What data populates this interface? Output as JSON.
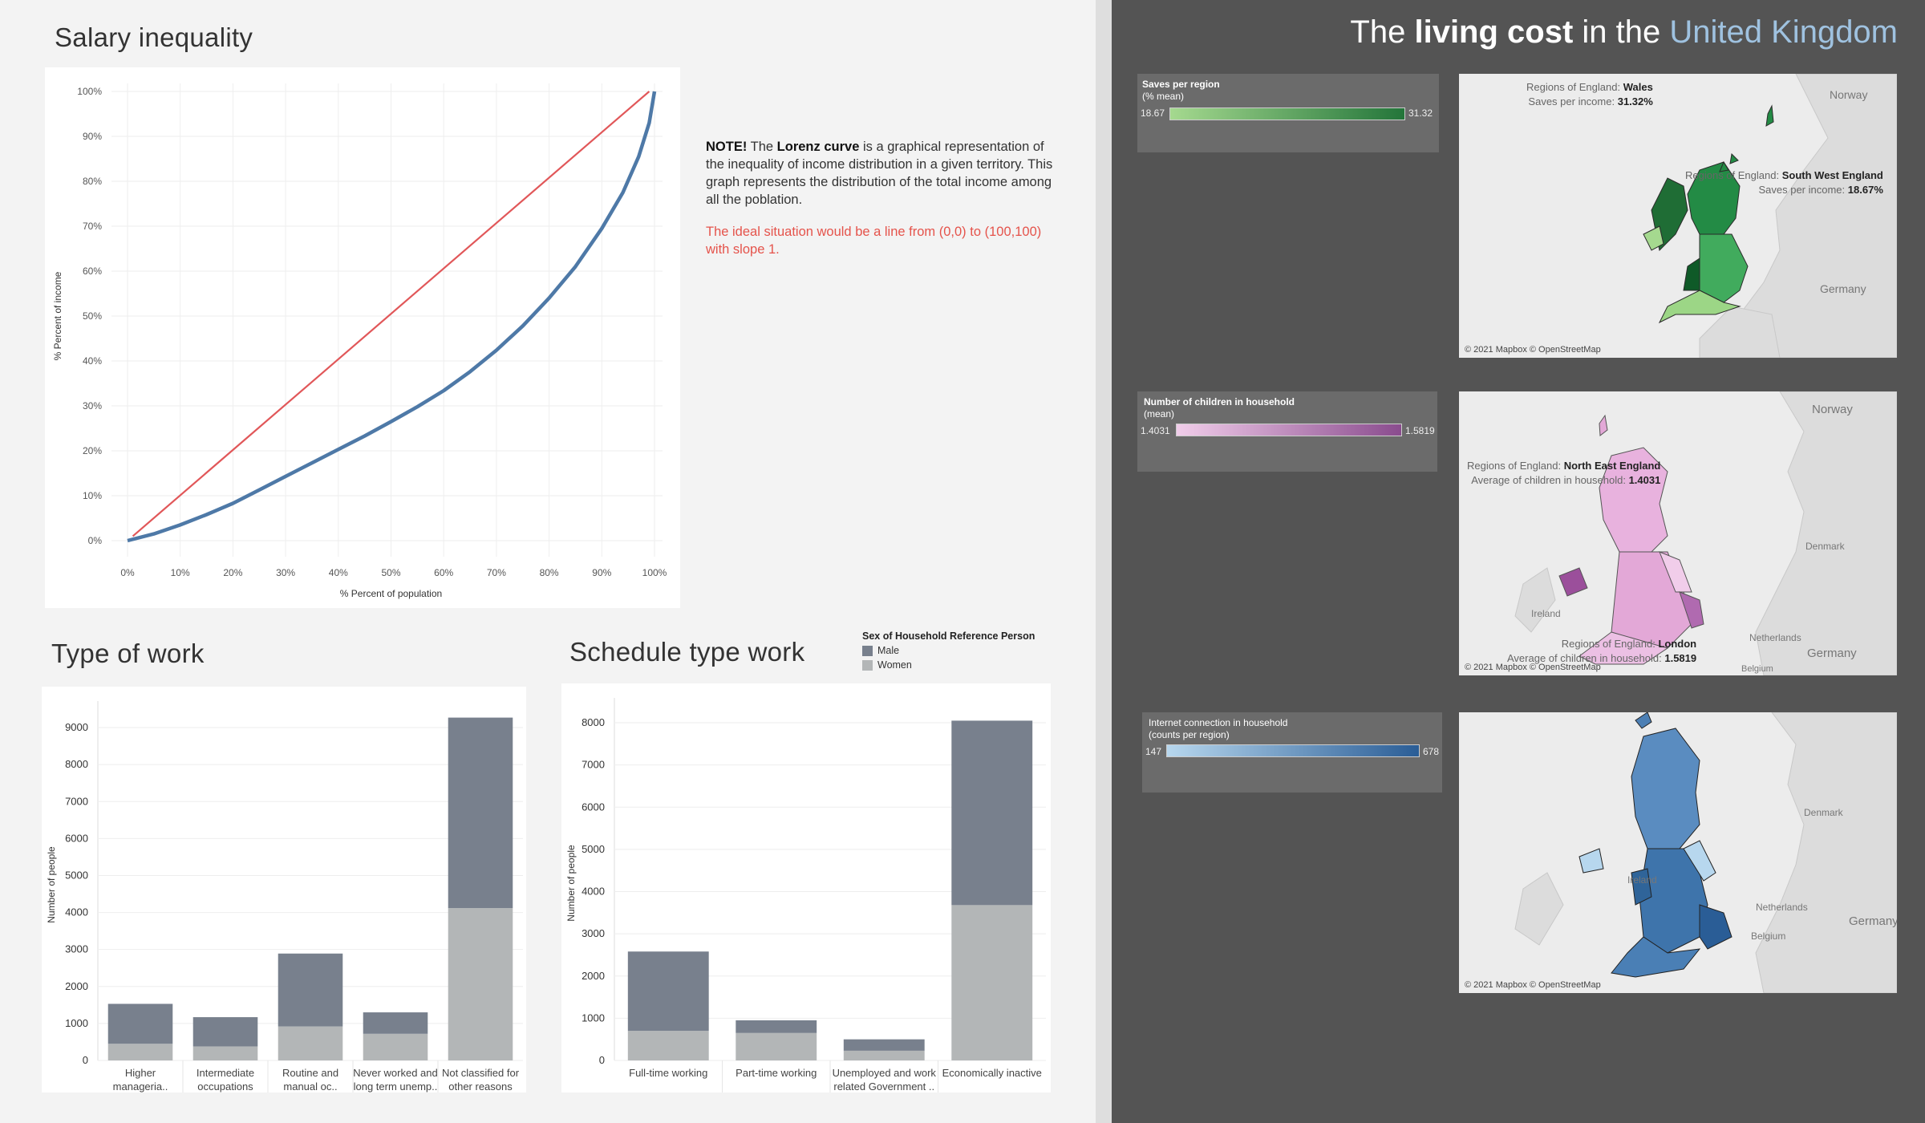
{
  "left": {
    "salary_title": "Salary inequality",
    "type_work_title": "Type of work",
    "schedule_title": "Schedule type work",
    "note": {
      "note_label": "NOTE!",
      "the": "The",
      "lorenz": "Lorenz curve",
      "text": "is a graphical representation of the inequality of income distribution in a given territory. This graph represents the distribution of the total income among all the poblation.",
      "ideal": "The ideal situation would be a line from (0,0) to (100,100) with slope 1."
    },
    "sex_legend": {
      "title": "Sex of Household Reference Person",
      "items": [
        {
          "label": "Male",
          "color": "#78808d"
        },
        {
          "label": "Women",
          "color": "#b3b6b7"
        }
      ]
    }
  },
  "chart_data": [
    {
      "id": "lorenz",
      "type": "line",
      "title": "Salary inequality",
      "xlabel": "% Percent of population",
      "ylabel": "% Percent of income",
      "xlim": [
        0,
        100
      ],
      "ylim": [
        0,
        100
      ],
      "xticks": [
        "0%",
        "10%",
        "20%",
        "30%",
        "40%",
        "50%",
        "60%",
        "70%",
        "80%",
        "90%",
        "100%"
      ],
      "yticks": [
        "0%",
        "10%",
        "20%",
        "30%",
        "40%",
        "50%",
        "60%",
        "70%",
        "80%",
        "90%",
        "100%"
      ],
      "series": [
        {
          "name": "Lorenz curve",
          "color": "#4e79a7",
          "x": [
            0,
            5,
            10,
            15,
            20,
            25,
            30,
            35,
            40,
            45,
            50,
            55,
            60,
            65,
            70,
            75,
            80,
            85,
            90,
            94,
            97,
            99,
            100
          ],
          "y": [
            0,
            1.5,
            3.5,
            5.8,
            8.3,
            11.3,
            14.3,
            17.3,
            20.3,
            23.3,
            26.5,
            29.8,
            33.4,
            37.6,
            42.4,
            47.8,
            54.0,
            61.0,
            69.5,
            77.5,
            85.5,
            93.0,
            100
          ]
        },
        {
          "name": "Equality line",
          "color": "#e15759",
          "x": [
            1,
            99
          ],
          "y": [
            1,
            100
          ]
        }
      ]
    },
    {
      "id": "type_of_work",
      "type": "bar",
      "title": "Type of work",
      "ylabel": "Number of people",
      "ylim": [
        0,
        9500
      ],
      "yticks": [
        0,
        1000,
        2000,
        3000,
        4000,
        5000,
        6000,
        7000,
        8000,
        9000
      ],
      "categories": [
        [
          "Higher",
          "manageria.."
        ],
        [
          "Intermediate",
          "occupations"
        ],
        [
          "Routine and",
          "manual oc.."
        ],
        [
          "Never worked and",
          "long term unemp.."
        ],
        [
          "Not classified for",
          "other reasons"
        ]
      ],
      "series": [
        {
          "name": "Women",
          "color": "#b3b6b7",
          "values": [
            450,
            380,
            920,
            720,
            4120
          ]
        },
        {
          "name": "Male",
          "color": "#78808d",
          "values": [
            1080,
            790,
            1970,
            580,
            5150
          ]
        }
      ]
    },
    {
      "id": "schedule_type",
      "type": "bar",
      "title": "Schedule type work",
      "ylabel": "Number of people",
      "ylim": [
        0,
        8400
      ],
      "yticks": [
        0,
        1000,
        2000,
        3000,
        4000,
        5000,
        6000,
        7000,
        8000
      ],
      "categories": [
        [
          "Full-time working"
        ],
        [
          "Part-time working"
        ],
        [
          "Unemployed and work",
          "related Government .."
        ],
        [
          "Economically inactive"
        ]
      ],
      "series": [
        {
          "name": "Women",
          "color": "#b3b6b7",
          "values": [
            700,
            650,
            230,
            3680
          ]
        },
        {
          "name": "Male",
          "color": "#78808d",
          "values": [
            1880,
            300,
            270,
            4370
          ]
        }
      ]
    }
  ],
  "right": {
    "title_part1": "The",
    "title_bold": "living cost",
    "title_part2": "in the",
    "title_uk": "United Kingdom",
    "credit": "© 2021 Mapbox © OpenStreetMap",
    "maps": [
      {
        "legend_title": "Saves per region",
        "legend_sub": "(% mean)",
        "min": "18.67",
        "max": "31.32",
        "color_low": "#a5d98f",
        "color_high": "#23753a",
        "countries": [
          "Norway",
          "Germany"
        ],
        "tooltips": [
          {
            "key": "Regions of England:",
            "region": "Wales",
            "measure": "Saves per income:",
            "value": "31.32%"
          },
          {
            "key": "Regions of England:",
            "region": "South West England",
            "measure": "Saves per income:",
            "value": "18.67%"
          }
        ]
      },
      {
        "legend_title": "Number of children in household",
        "legend_sub": "(mean)",
        "min": "1.4031",
        "max": "1.5819",
        "color_low": "#f1cdea",
        "color_high": "#8a4c8e",
        "countries": [
          "Norway",
          "Denmark",
          "Ireland",
          "Netherlands",
          "Germany",
          "Belgium"
        ],
        "tooltips": [
          {
            "key": "Regions of England:",
            "region": "North East England",
            "measure": "Average of children in household:",
            "value": "1.4031"
          },
          {
            "key": "Regions of England:",
            "region": "London",
            "measure": "Average of children in household:",
            "value": "1.5819"
          }
        ]
      },
      {
        "legend_title": "Internet connection in household",
        "legend_sub": "(counts per region)",
        "min": "147",
        "max": "678",
        "color_low": "#b7d7ee",
        "color_high": "#2a5d96",
        "countries": [
          "Denmark",
          "Ireland",
          "Netherlands",
          "Germany",
          "Belgium"
        ],
        "tooltips": []
      }
    ]
  }
}
